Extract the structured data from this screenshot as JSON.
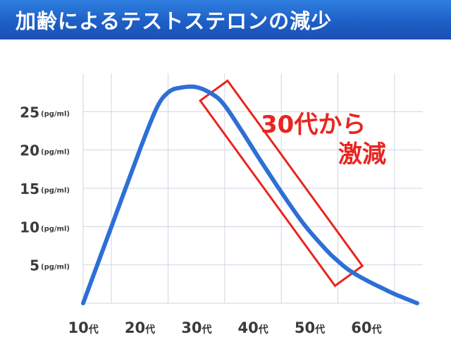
{
  "header": {
    "title": "加齢によるテストステロンの減少"
  },
  "chart_data": {
    "type": "line",
    "title": "加齢によるテストステロンの減少",
    "xlabel": "",
    "ylabel": "",
    "y_unit": "(pg/ml)",
    "x_ticks": [
      {
        "value": 10,
        "num": "10",
        "suffix": "代"
      },
      {
        "value": 20,
        "num": "20",
        "suffix": "代"
      },
      {
        "value": 30,
        "num": "30",
        "suffix": "代"
      },
      {
        "value": 40,
        "num": "40",
        "suffix": "代"
      },
      {
        "value": 50,
        "num": "50",
        "suffix": "代"
      },
      {
        "value": 60,
        "num": "60",
        "suffix": "代"
      }
    ],
    "y_ticks": [
      {
        "value": 5,
        "label": "5"
      },
      {
        "value": 10,
        "label": "10"
      },
      {
        "value": 15,
        "label": "15"
      },
      {
        "value": 20,
        "label": "20"
      },
      {
        "value": 25,
        "label": "25"
      }
    ],
    "xlim": [
      5,
      65
    ],
    "ylim": [
      0,
      30
    ],
    "grid": true,
    "series": [
      {
        "color": "#2e6fd6",
        "x": [
          5,
          10,
          15,
          18,
          20,
          22,
          25,
          28,
          30,
          33,
          36,
          40,
          44,
          48,
          50,
          52,
          55,
          58,
          60,
          64
        ],
        "y": [
          0,
          10,
          20,
          25.5,
          27.5,
          28.1,
          28.2,
          27.2,
          25.8,
          22.5,
          19.0,
          14.5,
          10.3,
          6.9,
          5.5,
          4.3,
          3.0,
          1.9,
          1.2,
          0
        ]
      }
    ],
    "annotations": [
      {
        "line1": "30代から",
        "line2": "激減",
        "color": "#e8251f"
      }
    ],
    "highlight": {
      "x_start": 30,
      "x_end": 50,
      "color": "#e8251f"
    }
  }
}
